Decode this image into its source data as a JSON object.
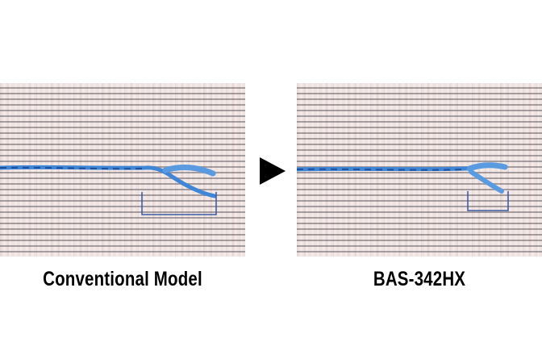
{
  "comparison": {
    "left": {
      "label": "Conventional Model"
    },
    "right": {
      "label": "BAS-342HX"
    }
  },
  "colors": {
    "thread": "#3b7fd0",
    "bracket": "#3a5aa0",
    "arrow": "#000000"
  }
}
